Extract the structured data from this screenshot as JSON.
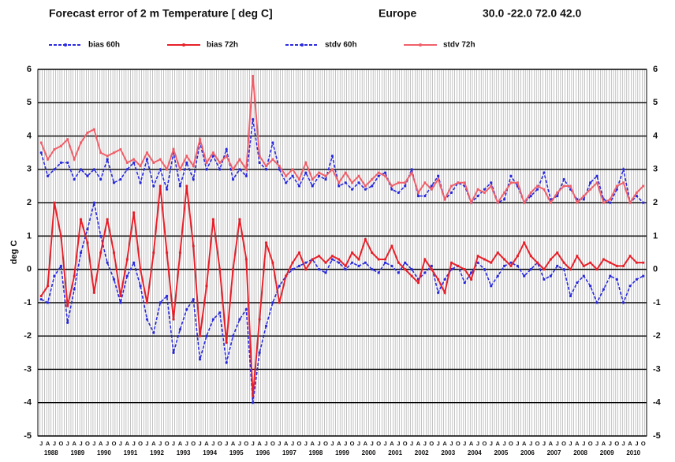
{
  "chart_data": {
    "type": "line",
    "title": "Forecast error of 2 m Temperature [ deg C]",
    "subtitle": "Europe",
    "annotation": "30.0 -22.0 72.0 42.0",
    "ylabel": "deg C",
    "categories": [
      "J",
      "A",
      "J",
      "O",
      "J",
      "A",
      "J",
      "O",
      "J",
      "A",
      "J",
      "O",
      "J",
      "A",
      "J",
      "O",
      "J",
      "A",
      "J",
      "O",
      "J",
      "A",
      "J",
      "O",
      "J",
      "A",
      "J",
      "O",
      "J",
      "A",
      "J",
      "O",
      "J",
      "A",
      "J",
      "O",
      "J",
      "A",
      "J",
      "O",
      "J",
      "A",
      "J",
      "O",
      "J",
      "A",
      "J",
      "O",
      "J",
      "A",
      "J",
      "O",
      "J",
      "A",
      "J",
      "O",
      "J",
      "A",
      "J",
      "O",
      "J",
      "A",
      "J",
      "O",
      "J",
      "A",
      "J",
      "O",
      "J",
      "A",
      "J",
      "O",
      "J",
      "A",
      "J",
      "O",
      "J",
      "A",
      "J",
      "O",
      "J",
      "A",
      "J",
      "O",
      "J",
      "A",
      "J",
      "O",
      "J",
      "A",
      "J",
      "O"
    ],
    "years": [
      "1988",
      "1989",
      "1990",
      "1991",
      "1992",
      "1993",
      "1994",
      "1995",
      "1996",
      "1997",
      "1998",
      "1999",
      "2000",
      "2001",
      "2002",
      "2003",
      "2004",
      "2005",
      "2006",
      "2007",
      "2008",
      "2009",
      "2010"
    ],
    "ylim": [
      -5,
      6
    ],
    "yticks": [
      -5,
      -4,
      -3,
      -2,
      -1,
      0,
      1,
      2,
      3,
      4,
      5,
      6
    ],
    "grid": true,
    "series": [
      {
        "name": "bias 60h",
        "color": "#2a2ae0",
        "dash": true,
        "values": [
          -0.9,
          -1.0,
          -0.2,
          0.1,
          -1.6,
          -0.6,
          0.5,
          1.2,
          2.0,
          1.0,
          0.2,
          -0.3,
          -1.0,
          -0.2,
          0.2,
          -0.5,
          -1.5,
          -1.9,
          -1.0,
          -0.8,
          -2.5,
          -1.8,
          -1.2,
          -0.9,
          -2.7,
          -2.0,
          -1.5,
          -1.3,
          -2.8,
          -2.0,
          -1.5,
          -1.2,
          -4.0,
          -2.5,
          -1.7,
          -1.0,
          -0.5,
          -0.2,
          0.0,
          0.1,
          0.2,
          0.3,
          0.0,
          -0.1,
          0.3,
          0.2,
          0.0,
          0.2,
          0.1,
          0.2,
          0.0,
          -0.1,
          0.2,
          0.1,
          -0.1,
          0.2,
          0.0,
          -0.3,
          -0.1,
          0.1,
          -0.7,
          -0.3,
          0.0,
          0.1,
          -0.4,
          -0.1,
          0.2,
          0.0,
          -0.5,
          -0.2,
          0.1,
          0.2,
          0.1,
          -0.2,
          0.0,
          0.2,
          -0.3,
          -0.2,
          0.1,
          0.0,
          -0.8,
          -0.4,
          -0.2,
          -0.5,
          -1.0,
          -0.6,
          -0.2,
          -0.3,
          -1.0,
          -0.5,
          -0.3,
          -0.2
        ]
      },
      {
        "name": "bias 72h",
        "color": "#e8202a",
        "dash": false,
        "values": [
          -0.8,
          -0.5,
          2.0,
          1.0,
          -1.1,
          -0.2,
          1.5,
          0.8,
          -0.7,
          0.5,
          1.5,
          0.5,
          -0.8,
          0.3,
          1.7,
          0.0,
          -1.0,
          0.5,
          2.5,
          0.5,
          -1.5,
          0.5,
          2.5,
          0.7,
          -2.0,
          -0.5,
          1.5,
          0.0,
          -2.2,
          0.0,
          1.5,
          0.3,
          -3.8,
          -1.5,
          0.8,
          0.2,
          -1.0,
          -0.2,
          0.2,
          0.5,
          0.0,
          0.3,
          0.4,
          0.2,
          0.4,
          0.3,
          0.1,
          0.5,
          0.3,
          0.9,
          0.5,
          0.3,
          0.3,
          0.7,
          0.2,
          0.0,
          -0.2,
          -0.4,
          0.3,
          0.0,
          -0.3,
          -0.7,
          0.2,
          0.1,
          0.0,
          -0.3,
          0.4,
          0.3,
          0.2,
          0.5,
          0.3,
          0.1,
          0.4,
          0.8,
          0.4,
          0.2,
          0.0,
          0.3,
          0.5,
          0.2,
          0.0,
          0.4,
          0.1,
          0.2,
          0.0,
          0.3,
          0.2,
          0.1,
          0.1,
          0.4,
          0.2,
          0.2
        ]
      },
      {
        "name": "stdv 60h",
        "color": "#2a2ae0",
        "dash": true,
        "values": [
          3.5,
          2.8,
          3.0,
          3.2,
          3.2,
          2.7,
          3.0,
          2.8,
          3.0,
          2.7,
          3.3,
          2.6,
          2.7,
          3.0,
          3.2,
          2.6,
          3.3,
          2.5,
          3.0,
          2.4,
          3.5,
          2.5,
          3.2,
          2.7,
          3.8,
          3.0,
          3.4,
          3.0,
          3.6,
          2.7,
          3.0,
          2.8,
          4.5,
          3.2,
          3.0,
          3.8,
          3.0,
          2.6,
          2.8,
          2.5,
          2.9,
          2.5,
          2.8,
          2.7,
          3.4,
          2.5,
          2.6,
          2.4,
          2.6,
          2.4,
          2.5,
          2.8,
          2.9,
          2.4,
          2.3,
          2.5,
          3.0,
          2.2,
          2.2,
          2.5,
          2.8,
          2.1,
          2.3,
          2.6,
          2.5,
          2.0,
          2.2,
          2.4,
          2.6,
          2.0,
          2.1,
          2.8,
          2.5,
          2.0,
          2.2,
          2.4,
          2.9,
          2.1,
          2.2,
          2.7,
          2.4,
          2.1,
          2.1,
          2.6,
          2.8,
          2.1,
          2.0,
          2.4,
          3.0,
          2.0,
          2.2,
          2.0
        ]
      },
      {
        "name": "stdv 72h",
        "color": "#f0606a",
        "dash": false,
        "values": [
          3.8,
          3.3,
          3.6,
          3.7,
          3.9,
          3.3,
          3.8,
          4.1,
          4.2,
          3.5,
          3.4,
          3.5,
          3.6,
          3.2,
          3.3,
          3.1,
          3.5,
          3.2,
          3.3,
          3.0,
          3.6,
          3.0,
          3.4,
          3.1,
          3.9,
          3.2,
          3.5,
          3.2,
          3.4,
          3.0,
          3.3,
          3.0,
          5.8,
          3.4,
          3.1,
          3.3,
          3.1,
          2.8,
          3.0,
          2.7,
          3.2,
          2.7,
          2.9,
          2.8,
          3.0,
          2.6,
          2.9,
          2.6,
          2.8,
          2.5,
          2.7,
          2.9,
          2.8,
          2.5,
          2.6,
          2.6,
          2.9,
          2.3,
          2.6,
          2.4,
          2.7,
          2.1,
          2.5,
          2.6,
          2.6,
          2.0,
          2.4,
          2.3,
          2.5,
          2.0,
          2.3,
          2.6,
          2.6,
          2.0,
          2.3,
          2.5,
          2.4,
          2.0,
          2.3,
          2.5,
          2.5,
          2.0,
          2.2,
          2.4,
          2.6,
          2.0,
          2.1,
          2.5,
          2.6,
          2.0,
          2.3,
          2.5
        ]
      }
    ]
  }
}
